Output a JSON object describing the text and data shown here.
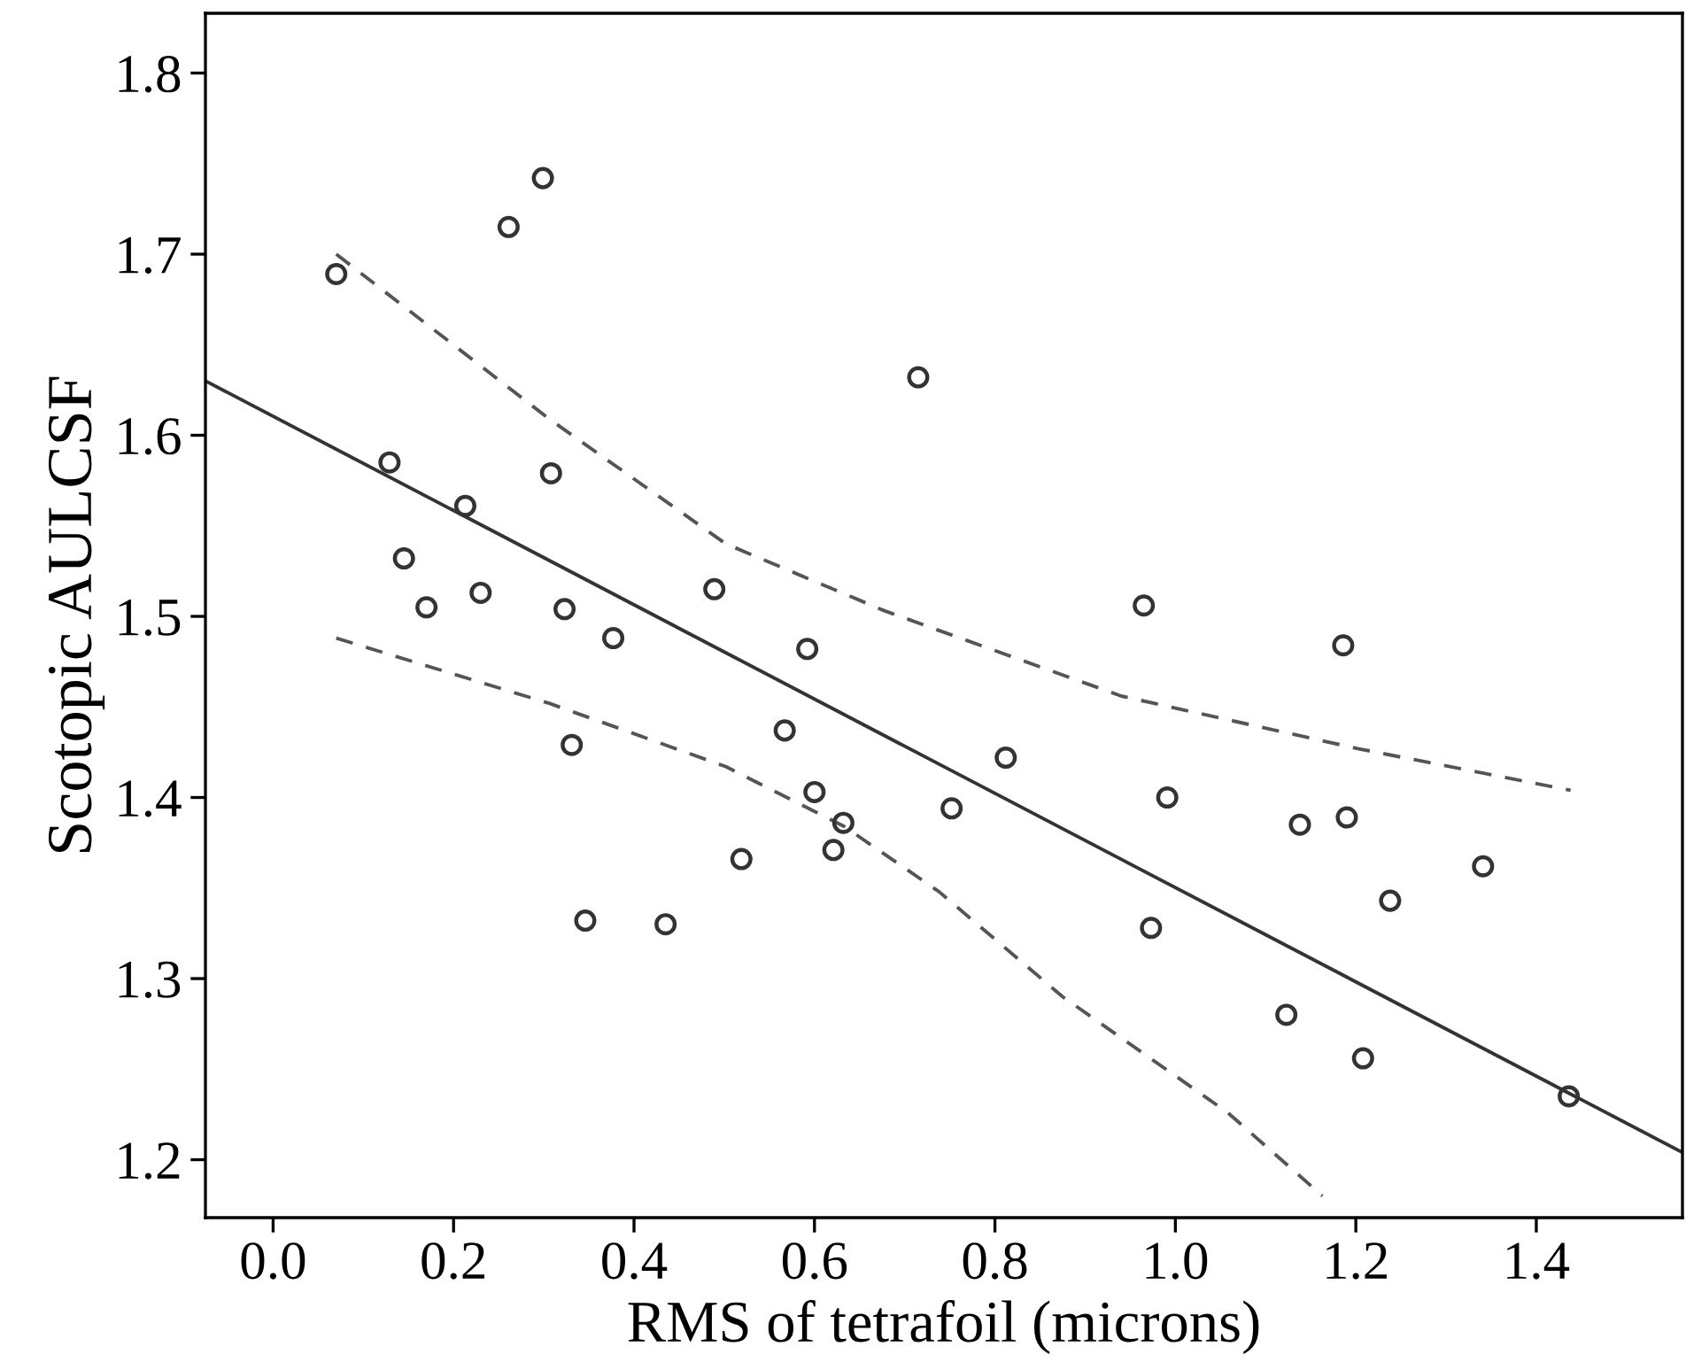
{
  "chart_data": {
    "type": "scatter",
    "xlabel": "RMS of tetrafoil (microns)",
    "ylabel": "Scotopic AULCSF",
    "xlim": [
      -0.075,
      1.562
    ],
    "ylim": [
      1.168,
      1.833
    ],
    "xticks": [
      {
        "value": 0,
        "label": "0.0"
      },
      0.2,
      0.4,
      0.6,
      0.8,
      {
        "value": 1,
        "label": "1.0"
      },
      1.2,
      1.4
    ],
    "yticks": [
      1.2,
      1.3,
      1.4,
      1.5,
      1.6,
      1.7,
      1.8
    ],
    "grid": false,
    "legend": false,
    "series": [
      {
        "color": "#333333",
        "marker": "circle",
        "x": [
          0.07,
          0.261,
          0.299,
          0.715,
          0.129,
          0.213,
          0.308,
          0.145,
          0.17,
          0.23,
          0.323,
          0.377,
          0.489,
          0.592,
          0.331,
          0.567,
          0.6,
          0.632,
          0.621,
          0.519,
          0.346,
          0.435,
          0.965,
          1.186,
          0.812,
          0.752,
          0.991,
          1.138,
          1.19,
          1.341,
          1.238,
          0.973,
          1.123,
          1.208,
          1.436
        ],
        "values": [
          1.689,
          1.715,
          1.742,
          1.632,
          1.585,
          1.561,
          1.579,
          1.532,
          1.505,
          1.513,
          1.504,
          1.488,
          1.515,
          1.482,
          1.429,
          1.437,
          1.403,
          1.386,
          1.371,
          1.366,
          1.332,
          1.33,
          1.506,
          1.484,
          1.422,
          1.394,
          1.4,
          1.385,
          1.389,
          1.362,
          1.343,
          1.328,
          1.28,
          1.256,
          1.235
        ]
      },
      {
        "type": "line",
        "color": "#333333",
        "marker": "none",
        "line_style": "solid",
        "x": [
          -0.075,
          1.562
        ],
        "values": [
          1.63,
          1.204
        ]
      },
      {
        "type": "line",
        "color": "#555555",
        "marker": "none",
        "line_style": "dashed",
        "x": [
          0.07,
          0.306,
          0.502,
          0.678,
          0.94,
          1.202,
          1.438
        ],
        "values": [
          1.7,
          1.609,
          1.54,
          1.503,
          1.456,
          1.427,
          1.404
        ]
      },
      {
        "type": "line",
        "color": "#555555",
        "marker": "none",
        "line_style": "dashed",
        "x": [
          0.07,
          0.306,
          0.502,
          0.633,
          0.738,
          0.875,
          1.058,
          1.163
        ],
        "values": [
          1.488,
          1.452,
          1.417,
          1.384,
          1.348,
          1.29,
          1.226,
          1.18
        ]
      }
    ]
  }
}
